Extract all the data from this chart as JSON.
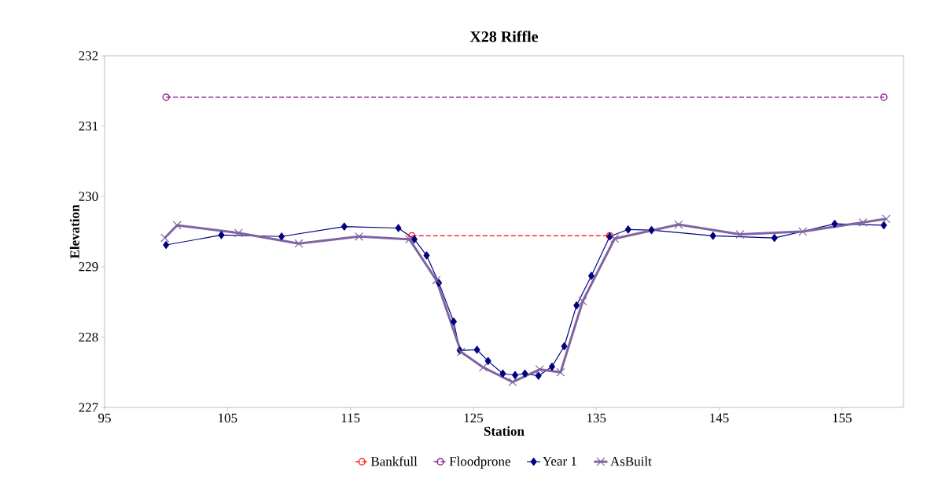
{
  "chart_data": {
    "type": "line",
    "title": "X28 Riffle",
    "xlabel": "Station",
    "ylabel": "Elevation",
    "xlim": [
      95,
      160
    ],
    "xticks": [
      95,
      105,
      115,
      125,
      135,
      145,
      155
    ],
    "ylim": [
      227,
      232
    ],
    "yticks": [
      227,
      228,
      229,
      230,
      231,
      232
    ],
    "grid": false,
    "legend": "bottom",
    "series": [
      {
        "name": "Bankfull",
        "color": "#ff0000",
        "marker": "circle",
        "line_style": "dashed",
        "x": [
          120.0,
          136.1
        ],
        "values": [
          229.44,
          229.44
        ]
      },
      {
        "name": "Floodprone",
        "color": "#800080",
        "marker": "circle",
        "line_style": "dashed",
        "x": [
          100.0,
          158.4
        ],
        "values": [
          231.41,
          231.41
        ]
      },
      {
        "name": "Year 1",
        "color": "#000080",
        "marker": "diamond",
        "line_style": "solid",
        "x": [
          100.0,
          104.5,
          109.4,
          114.5,
          118.9,
          120.2,
          121.2,
          122.2,
          123.4,
          123.9,
          125.3,
          126.2,
          127.4,
          128.4,
          129.2,
          130.3,
          131.4,
          132.4,
          133.4,
          134.6,
          136.1,
          137.6,
          139.5,
          144.5,
          149.5,
          154.4,
          158.4
        ],
        "values": [
          229.31,
          229.45,
          229.43,
          229.57,
          229.55,
          229.39,
          229.16,
          228.77,
          228.22,
          227.81,
          227.82,
          227.66,
          227.48,
          227.46,
          227.48,
          227.45,
          227.58,
          227.87,
          228.45,
          228.87,
          229.43,
          229.53,
          229.52,
          229.44,
          229.41,
          229.61,
          229.59
        ]
      },
      {
        "name": "AsBuilt",
        "color": "#8064a2",
        "marker": "cross",
        "line_style": "solid",
        "x": [
          99.9,
          100.9,
          105.9,
          110.8,
          115.7,
          119.8,
          122.0,
          124.0,
          125.8,
          128.2,
          130.4,
          132.1,
          133.9,
          136.5,
          141.7,
          146.7,
          151.8,
          156.7,
          158.6
        ],
        "values": [
          229.41,
          229.59,
          229.48,
          229.33,
          229.43,
          229.39,
          228.81,
          227.79,
          227.57,
          227.36,
          227.54,
          227.5,
          228.51,
          229.4,
          229.6,
          229.46,
          229.5,
          229.63,
          229.68
        ]
      }
    ]
  }
}
